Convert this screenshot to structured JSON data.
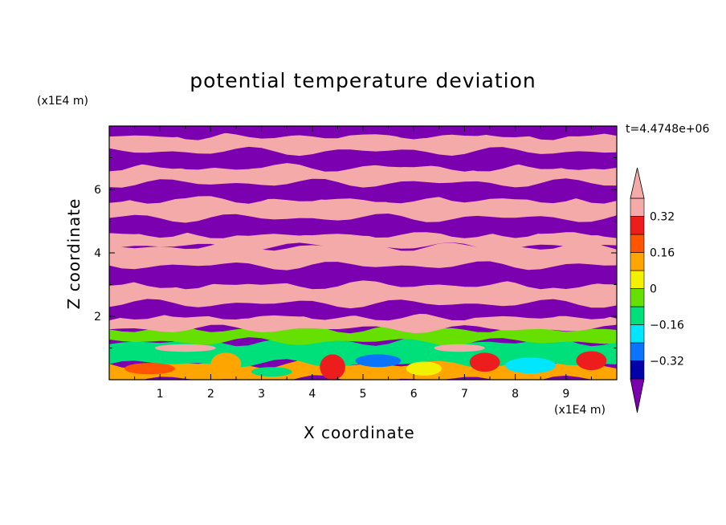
{
  "chart_data": {
    "type": "heatmap",
    "title": "potential temperature deviation",
    "xlabel": "X coordinate",
    "ylabel": "Z coordinate",
    "x_unit": "(x1E4 m)",
    "z_unit": "(x1E4 m)",
    "time_label": "t=4.4748e+06",
    "xlim": [
      0,
      10
    ],
    "ylim": [
      0,
      8
    ],
    "x_ticks": [
      1,
      2,
      3,
      4,
      5,
      6,
      7,
      8,
      9
    ],
    "y_ticks": [
      2,
      4,
      6
    ],
    "colorbar": {
      "levels": [
        -0.4,
        -0.32,
        -0.24,
        -0.16,
        -0.08,
        0,
        0.08,
        0.16,
        0.24,
        0.32,
        0.4
      ],
      "tick_labels": [
        "-0.32",
        "-0.16",
        "0",
        "0.16",
        "0.32"
      ],
      "tick_values": [
        -0.32,
        -0.16,
        0,
        0.16,
        0.32
      ],
      "colors": [
        "#7a00b0",
        "#0000a8",
        "#0a74ff",
        "#00e6ff",
        "#00e07a",
        "#66e000",
        "#f2f200",
        "#ffa500",
        "#ff5500",
        "#ee1d1d",
        "#f5aaaa"
      ],
      "extend": "both"
    },
    "bands": [
      {
        "z_min": 0.0,
        "z_max": 0.5,
        "value": 0.12
      },
      {
        "z_min": 0.5,
        "z_max": 1.2,
        "value": -0.14
      },
      {
        "z_min": 1.2,
        "z_max": 1.6,
        "value": -0.05
      },
      {
        "z_min": 1.6,
        "z_max": 2.0,
        "value": 0.45
      },
      {
        "z_min": 2.0,
        "z_max": 2.4,
        "value": -0.45
      },
      {
        "z_min": 2.4,
        "z_max": 3.0,
        "value": 0.45
      },
      {
        "z_min": 3.0,
        "z_max": 3.6,
        "value": -0.45
      },
      {
        "z_min": 3.6,
        "z_max": 4.2,
        "value": 0.45
      },
      {
        "z_min": 4.2,
        "z_max": 4.6,
        "value": 0.45
      },
      {
        "z_min": 4.6,
        "z_max": 5.1,
        "value": -0.45
      },
      {
        "z_min": 5.1,
        "z_max": 5.7,
        "value": 0.45
      },
      {
        "z_min": 5.7,
        "z_max": 6.2,
        "value": -0.45
      },
      {
        "z_min": 6.2,
        "z_max": 6.7,
        "value": 0.45
      },
      {
        "z_min": 6.7,
        "z_max": 7.2,
        "value": -0.45
      },
      {
        "z_min": 7.2,
        "z_max": 7.7,
        "value": 0.45
      },
      {
        "z_min": 7.7,
        "z_max": 8.0,
        "value": -0.45
      }
    ]
  }
}
